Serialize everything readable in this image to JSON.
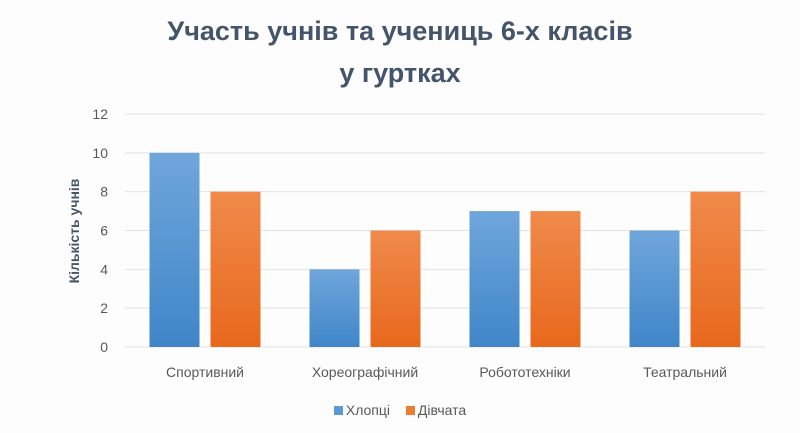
{
  "chart_data": {
    "type": "bar",
    "title_line1": "Участь учнів та учениць 6-х класів",
    "title_line2": "у гуртках",
    "xlabel": "",
    "ylabel": "Кількість учнів",
    "categories": [
      "Спортивний",
      "Хореографічний",
      "Робототехніки",
      "Театральний"
    ],
    "series": [
      {
        "name": "Хлопці",
        "values": [
          10,
          4,
          7,
          6
        ],
        "color": "#5b9bd5"
      },
      {
        "name": "Дівчата",
        "values": [
          8,
          6,
          7,
          8
        ],
        "color": "#ed7d31"
      }
    ],
    "ylim": [
      0,
      12
    ],
    "yticks": [
      0,
      2,
      4,
      6,
      8,
      10,
      12
    ],
    "grid": true,
    "legend": "bottom"
  }
}
